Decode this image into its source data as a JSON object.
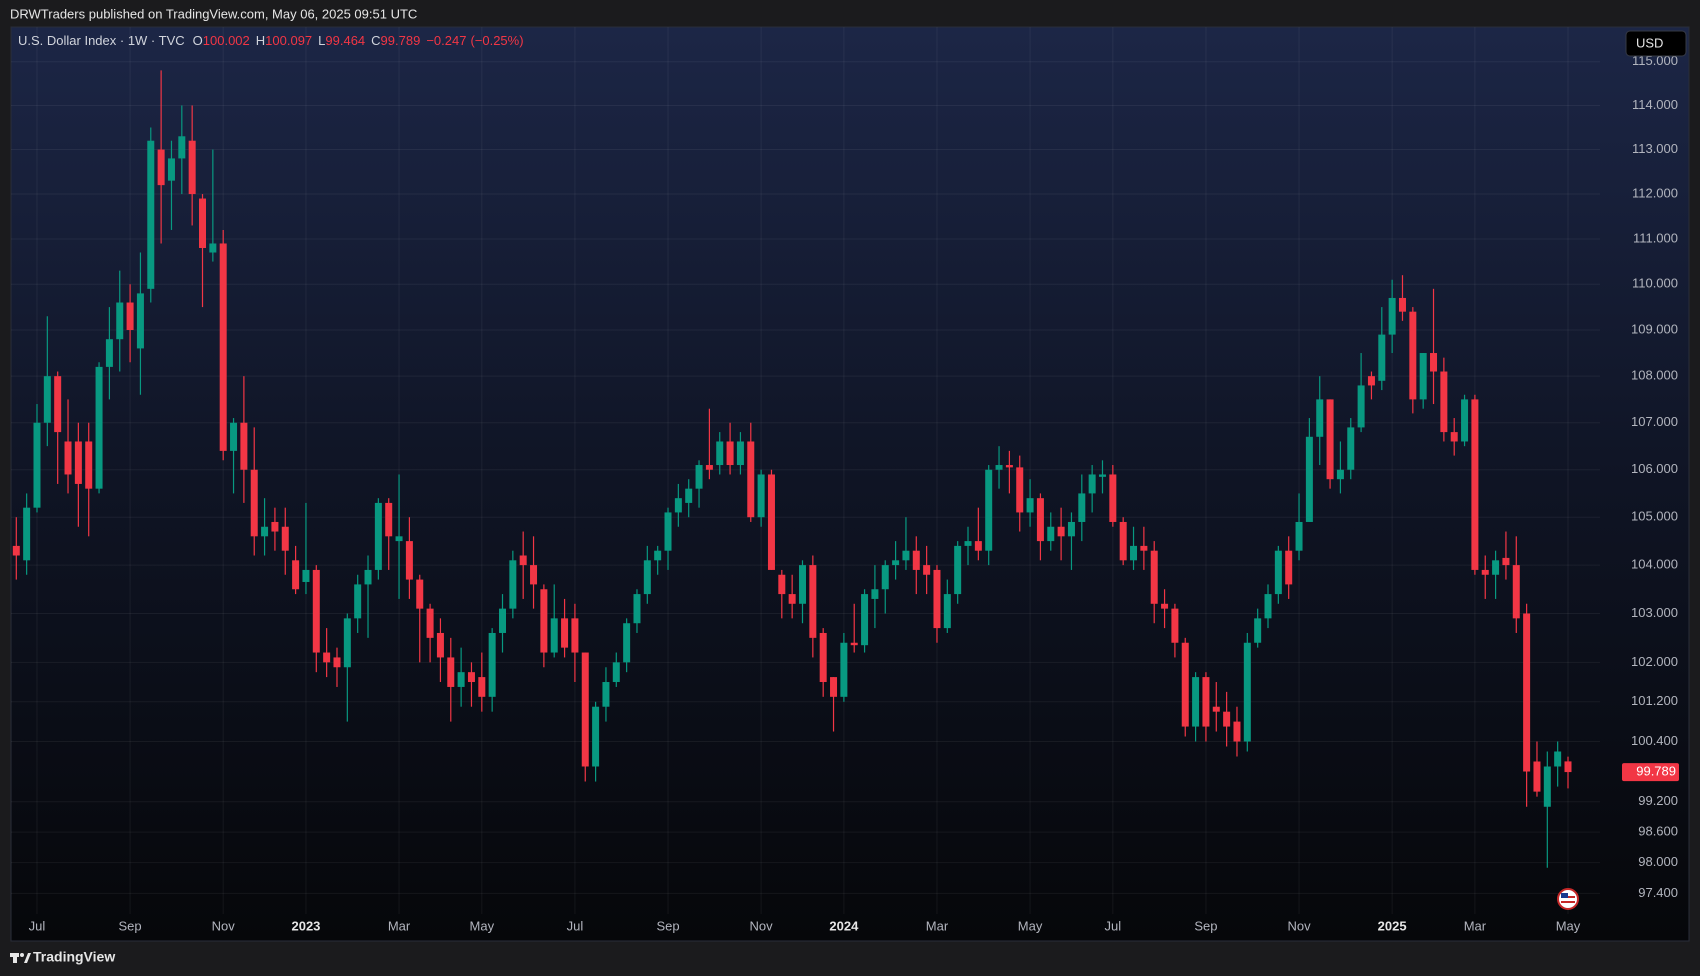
{
  "header": {
    "publisher": "DRWTraders published on TradingView.com, May 06, 2025 09:51 UTC"
  },
  "footer": {
    "brand": "TradingView"
  },
  "chart_data": {
    "type": "candlestick",
    "title": "U.S. Dollar Index · 1W · TVC",
    "ohlc_labels": [
      "O",
      "H",
      "L",
      "C"
    ],
    "change": {
      "value": -0.247,
      "label": "−0.247"
    },
    "change_pct": {
      "value": -0.25,
      "label": "(−0.25%)"
    },
    "currency": "USD",
    "log_scale": true,
    "grid": true,
    "up_color": "#089981",
    "down_color": "#f23645",
    "ylim": [
      97.0,
      115.8
    ],
    "yticks": [
      {
        "value": 115,
        "label": "115.000"
      },
      {
        "value": 114,
        "label": "114.000"
      },
      {
        "value": 113,
        "label": "113.000"
      },
      {
        "value": 112,
        "label": "112.000"
      },
      {
        "value": 111,
        "label": "111.000"
      },
      {
        "value": 110,
        "label": "110.000"
      },
      {
        "value": 109,
        "label": "109.000"
      },
      {
        "value": 108,
        "label": "108.000"
      },
      {
        "value": 107,
        "label": "107.000"
      },
      {
        "value": 106,
        "label": "106.000"
      },
      {
        "value": 105,
        "label": "105.000"
      },
      {
        "value": 104,
        "label": "104.000"
      },
      {
        "value": 103,
        "label": "103.000"
      },
      {
        "value": 102,
        "label": "102.000"
      },
      {
        "value": 101.2,
        "label": "101.200"
      },
      {
        "value": 100.4,
        "label": "100.400"
      },
      {
        "value": 99.2,
        "label": "99.200"
      },
      {
        "value": 98.6,
        "label": "98.600"
      },
      {
        "value": 98,
        "label": "98.000"
      },
      {
        "value": 97.4,
        "label": "97.400"
      }
    ],
    "categories": [
      null,
      null,
      "Jul",
      null,
      null,
      null,
      null,
      null,
      null,
      null,
      null,
      "Sep",
      null,
      null,
      null,
      null,
      null,
      null,
      null,
      null,
      "Nov",
      null,
      null,
      null,
      null,
      null,
      null,
      null,
      "2023",
      null,
      null,
      null,
      null,
      null,
      null,
      null,
      null,
      "Mar",
      null,
      null,
      null,
      null,
      null,
      null,
      null,
      "May",
      null,
      null,
      null,
      null,
      null,
      null,
      null,
      null,
      "Jul",
      null,
      null,
      null,
      null,
      null,
      null,
      null,
      null,
      "Sep",
      null,
      null,
      null,
      null,
      null,
      null,
      null,
      null,
      "Nov",
      null,
      null,
      null,
      null,
      null,
      null,
      null,
      "2024",
      null,
      null,
      null,
      null,
      null,
      null,
      null,
      null,
      "Mar",
      null,
      null,
      null,
      null,
      null,
      null,
      null,
      null,
      "May",
      null,
      null,
      null,
      null,
      null,
      null,
      null,
      "Jul",
      null,
      null,
      null,
      null,
      null,
      null,
      null,
      null,
      "Sep",
      null,
      null,
      null,
      null,
      null,
      null,
      null,
      null,
      "Nov",
      null,
      null,
      null,
      null,
      null,
      null,
      null,
      null,
      "2025",
      null,
      null,
      null,
      null,
      null,
      null,
      null,
      "Mar",
      null,
      null,
      null,
      null,
      null,
      null,
      null,
      null,
      "May"
    ],
    "open": [
      104.4,
      104.1,
      105.2,
      107.0,
      108.0,
      106.6,
      106.6,
      106.6,
      105.6,
      108.2,
      108.8,
      109.6,
      108.6,
      109.9,
      113.0,
      112.3,
      112.8,
      113.2,
      111.9,
      110.7,
      110.9,
      106.4,
      107.0,
      106.0,
      104.6,
      104.9,
      104.8,
      104.1,
      103.65,
      103.9,
      102.2,
      102.1,
      101.9,
      102.9,
      103.6,
      103.9,
      105.3,
      104.5,
      104.5,
      103.7,
      103.1,
      102.6,
      102.1,
      101.5,
      101.8,
      101.7,
      101.3,
      102.6,
      103.1,
      104.2,
      104.0,
      103.5,
      102.2,
      102.9,
      102.9,
      102.2,
      99.9,
      101.1,
      101.6,
      102.0,
      102.8,
      103.4,
      104.1,
      104.3,
      105.1,
      105.3,
      105.6,
      106.1,
      106.1,
      106.6,
      106.1,
      106.6,
      105.0,
      105.9,
      103.8,
      103.4,
      103.2,
      104.0,
      102.6,
      101.7,
      101.3,
      102.4,
      102.35,
      103.3,
      103.5,
      104.0,
      104.1,
      104.3,
      104.0,
      103.9,
      102.7,
      103.4,
      104.4,
      104.5,
      104.3,
      106.0,
      106.1,
      106.05,
      105.1,
      105.4,
      104.5,
      104.8,
      104.6,
      104.9,
      105.5,
      105.85,
      105.9,
      104.9,
      104.1,
      104.4,
      104.3,
      103.2,
      103.1,
      102.4,
      100.7,
      101.7,
      101.1,
      101.0,
      100.8,
      100.4,
      102.4,
      102.9,
      103.4,
      104.3,
      104.3,
      104.9,
      106.7,
      107.5,
      105.8,
      106.0,
      106.9,
      108.0,
      107.9,
      108.9,
      109.7,
      109.4,
      107.5,
      108.5,
      108.1,
      106.8,
      106.6,
      107.5,
      103.9,
      103.8,
      104.15,
      104.0,
      103.0,
      100.0,
      99.1,
      99.9,
      100.002
    ],
    "high": [
      105.0,
      105.5,
      107.4,
      109.3,
      108.1,
      107.5,
      107.0,
      107.0,
      108.3,
      109.5,
      110.3,
      110.0,
      110.7,
      113.5,
      114.8,
      113.2,
      114.0,
      114.0,
      112.0,
      113.0,
      111.2,
      107.1,
      108.0,
      106.9,
      105.4,
      105.2,
      105.2,
      104.4,
      105.3,
      104.0,
      102.7,
      102.3,
      103.0,
      103.8,
      104.2,
      105.4,
      105.4,
      105.9,
      105.0,
      103.8,
      103.2,
      102.9,
      102.5,
      102.3,
      102.0,
      102.2,
      102.7,
      103.4,
      104.3,
      104.7,
      104.6,
      103.6,
      103.6,
      103.3,
      103.2,
      102.2,
      101.2,
      101.9,
      102.2,
      102.9,
      103.5,
      104.4,
      104.4,
      105.2,
      105.7,
      105.8,
      106.2,
      107.3,
      106.8,
      107.0,
      106.8,
      107.0,
      106.0,
      106.0,
      103.9,
      103.8,
      104.1,
      104.2,
      102.7,
      101.7,
      102.6,
      103.2,
      103.5,
      104.0,
      104.1,
      104.5,
      105.0,
      104.6,
      104.4,
      104.0,
      103.7,
      104.5,
      104.8,
      105.2,
      106.1,
      106.5,
      106.4,
      106.3,
      105.8,
      105.5,
      105.1,
      105.2,
      105.1,
      105.9,
      106.1,
      106.2,
      106.1,
      105.0,
      104.8,
      104.8,
      104.5,
      103.5,
      103.2,
      102.5,
      101.8,
      101.8,
      101.6,
      101.4,
      101.1,
      102.6,
      103.1,
      103.6,
      104.4,
      104.6,
      105.5,
      107.1,
      108.0,
      107.5,
      106.6,
      107.1,
      108.5,
      108.1,
      109.5,
      110.1,
      110.2,
      109.5,
      108.5,
      109.9,
      108.4,
      107.1,
      107.6,
      107.6,
      104.2,
      104.3,
      104.7,
      104.6,
      103.2,
      100.4,
      100.2,
      100.4,
      100.097
    ],
    "low": [
      103.7,
      103.8,
      105.1,
      106.5,
      105.7,
      105.5,
      104.8,
      104.6,
      105.5,
      107.5,
      108.1,
      108.3,
      107.6,
      109.6,
      110.9,
      111.2,
      112.0,
      111.3,
      109.5,
      110.5,
      106.2,
      105.5,
      105.3,
      104.2,
      104.2,
      104.3,
      103.8,
      103.4,
      103.4,
      101.8,
      101.7,
      101.5,
      100.8,
      102.6,
      102.5,
      103.7,
      103.9,
      103.3,
      103.3,
      102.0,
      102.0,
      101.6,
      100.8,
      101.1,
      101.1,
      101.0,
      101.0,
      102.2,
      102.9,
      103.3,
      103.1,
      101.9,
      102.1,
      102.1,
      101.6,
      99.6,
      99.6,
      100.8,
      101.5,
      101.8,
      102.6,
      103.2,
      103.8,
      103.9,
      104.8,
      105.0,
      105.2,
      105.8,
      105.9,
      105.9,
      105.9,
      104.9,
      104.8,
      103.9,
      102.9,
      102.9,
      102.8,
      102.1,
      101.3,
      100.6,
      101.2,
      102.2,
      102.2,
      102.7,
      103.0,
      103.7,
      103.9,
      103.4,
      103.4,
      102.4,
      102.6,
      103.2,
      104.0,
      104.1,
      104.0,
      105.6,
      105.5,
      104.7,
      104.8,
      104.1,
      104.3,
      104.1,
      103.9,
      104.5,
      105.1,
      105.5,
      104.8,
      104.0,
      103.9,
      103.9,
      102.8,
      102.7,
      102.1,
      100.5,
      100.4,
      100.4,
      100.6,
      100.3,
      100.1,
      100.2,
      102.3,
      102.7,
      103.2,
      103.3,
      104.1,
      104.9,
      106.1,
      105.6,
      105.5,
      105.8,
      106.8,
      107.5,
      107.7,
      108.5,
      109.2,
      107.2,
      107.3,
      107.4,
      106.6,
      106.3,
      106.5,
      103.8,
      103.3,
      103.3,
      103.7,
      102.6,
      99.1,
      99.3,
      97.9,
      99.5,
      99.464
    ],
    "close": [
      104.2,
      105.2,
      107.0,
      108.0,
      106.8,
      105.9,
      105.7,
      105.6,
      108.2,
      108.8,
      109.6,
      109.0,
      109.8,
      113.2,
      112.2,
      112.8,
      113.3,
      112.0,
      110.8,
      110.9,
      106.4,
      107.0,
      106.0,
      104.6,
      104.8,
      104.7,
      104.3,
      103.5,
      103.9,
      102.2,
      102.0,
      101.9,
      102.9,
      103.6,
      103.9,
      105.3,
      104.6,
      104.6,
      103.7,
      103.1,
      102.5,
      102.1,
      101.5,
      101.8,
      101.6,
      101.3,
      102.6,
      103.1,
      104.1,
      104.0,
      103.6,
      102.2,
      102.9,
      102.3,
      102.2,
      99.9,
      101.1,
      101.6,
      102.0,
      102.8,
      103.4,
      104.1,
      104.3,
      105.1,
      105.4,
      105.6,
      106.1,
      106.0,
      106.6,
      106.1,
      106.6,
      105.0,
      105.9,
      103.9,
      103.4,
      103.2,
      104.0,
      102.5,
      101.6,
      101.3,
      102.4,
      102.35,
      103.4,
      103.5,
      104.0,
      104.1,
      104.3,
      103.9,
      103.8,
      102.7,
      103.4,
      104.4,
      104.5,
      104.3,
      106.0,
      106.1,
      106.05,
      105.1,
      105.4,
      104.5,
      104.8,
      104.6,
      104.9,
      105.5,
      105.9,
      105.9,
      104.9,
      104.1,
      104.4,
      104.3,
      103.2,
      103.1,
      102.4,
      100.7,
      101.7,
      100.7,
      101.0,
      100.7,
      100.4,
      102.4,
      102.9,
      103.4,
      104.3,
      103.6,
      104.9,
      106.7,
      107.5,
      105.8,
      106.0,
      106.9,
      107.8,
      107.8,
      108.9,
      109.7,
      109.4,
      107.5,
      108.5,
      108.1,
      106.8,
      106.6,
      107.5,
      103.9,
      103.8,
      104.1,
      104.0,
      102.9,
      99.8,
      99.4,
      99.9,
      100.2,
      99.789
    ]
  }
}
